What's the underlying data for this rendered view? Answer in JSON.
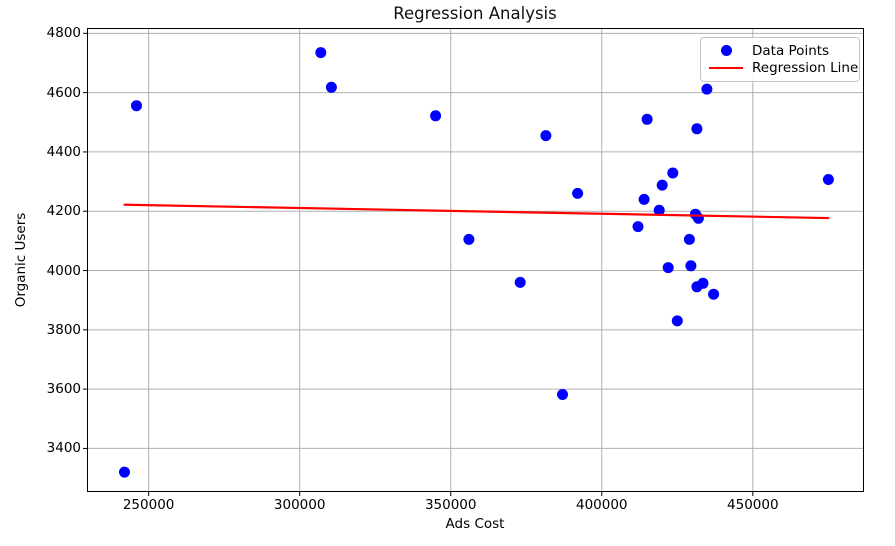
{
  "figure": {
    "title": "Regression Analysis",
    "xlabel": "Ads Cost",
    "ylabel": "Organic Users"
  },
  "legend": {
    "position": "upper right",
    "items": [
      {
        "label": "Data Points",
        "marker": "dot",
        "color": "#0000ff"
      },
      {
        "label": "Regression Line",
        "marker": "line",
        "color": "#ff0000"
      }
    ]
  },
  "chart_data": {
    "type": "scatter",
    "title": "Regression Analysis",
    "xlabel": "Ads Cost",
    "ylabel": "Organic Users",
    "grid": true,
    "legend_position": "upper right",
    "xlim": [
      229600,
      486800
    ],
    "ylim": [
      3253,
      4818
    ],
    "x_ticks": [
      250000,
      300000,
      350000,
      400000,
      450000
    ],
    "x_tick_labels": [
      "250000",
      "300000",
      "350000",
      "400000",
      "450000"
    ],
    "y_ticks": [
      3400,
      3600,
      3800,
      4000,
      4200,
      4400,
      4600,
      4800
    ],
    "y_tick_labels": [
      "3400",
      "3600",
      "3800",
      "4000",
      "4200",
      "4400",
      "4600",
      "4800"
    ],
    "colors": {
      "points": "#0000ff",
      "regression_line": "#ff0000",
      "grid": "#b0b0b0",
      "spine": "#000000",
      "text": "#000000",
      "legend_border": "#c4c4c4"
    },
    "series": [
      {
        "name": "Data Points",
        "type": "scatter",
        "color": "#0000ff",
        "points": [
          [
            242000,
            3320
          ],
          [
            246000,
            4556
          ],
          [
            307000,
            4735
          ],
          [
            310500,
            4618
          ],
          [
            345000,
            4522
          ],
          [
            356000,
            4105
          ],
          [
            373000,
            3960
          ],
          [
            381500,
            4455
          ],
          [
            387000,
            3582
          ],
          [
            392000,
            4260
          ],
          [
            412000,
            4148
          ],
          [
            414000,
            4240
          ],
          [
            415000,
            4510
          ],
          [
            419000,
            4203
          ],
          [
            420000,
            4288
          ],
          [
            422000,
            4010
          ],
          [
            423500,
            4329
          ],
          [
            425000,
            3830
          ],
          [
            429000,
            4105
          ],
          [
            429500,
            4016
          ],
          [
            431000,
            4190
          ],
          [
            431500,
            3945
          ],
          [
            431500,
            4478
          ],
          [
            432000,
            4176
          ],
          [
            433500,
            3957
          ],
          [
            434800,
            4612
          ],
          [
            437000,
            3920
          ],
          [
            475000,
            4307
          ]
        ]
      },
      {
        "name": "Regression Line",
        "type": "line",
        "color": "#ff0000",
        "points": [
          [
            242000,
            4222
          ],
          [
            475000,
            4177
          ]
        ]
      }
    ]
  }
}
